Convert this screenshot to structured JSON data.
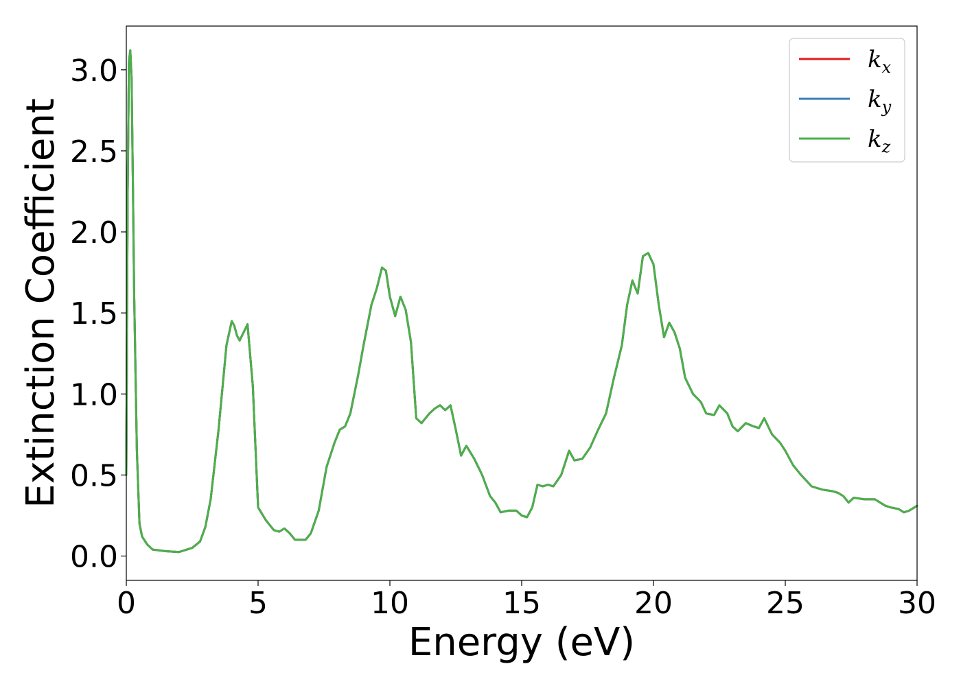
{
  "chart_data": {
    "type": "line",
    "title": "",
    "xlabel": "Energy (eV)",
    "ylabel": "Extinction Coefficient",
    "xlim": [
      0,
      30
    ],
    "ylim": [
      -0.15,
      3.27
    ],
    "xticks": [
      0,
      5,
      10,
      15,
      20,
      25,
      30
    ],
    "xtick_labels": [
      "0",
      "5",
      "10",
      "15",
      "20",
      "25",
      "30"
    ],
    "yticks": [
      0.0,
      0.5,
      1.0,
      1.5,
      2.0,
      2.5,
      3.0
    ],
    "ytick_labels": [
      "0.0",
      "0.5",
      "1.0",
      "1.5",
      "2.0",
      "2.5",
      "3.0"
    ],
    "grid": false,
    "legend_position": "top-right",
    "x": [
      0,
      0.05,
      0.1,
      0.15,
      0.2,
      0.25,
      0.3,
      0.4,
      0.5,
      0.6,
      0.8,
      1.0,
      1.5,
      2.0,
      2.5,
      2.8,
      3.0,
      3.2,
      3.5,
      3.8,
      4.0,
      4.1,
      4.2,
      4.3,
      4.45,
      4.6,
      4.8,
      5.0,
      5.3,
      5.6,
      5.8,
      6.0,
      6.2,
      6.4,
      6.8,
      7.0,
      7.3,
      7.6,
      7.9,
      8.1,
      8.3,
      8.5,
      8.8,
      9.0,
      9.3,
      9.5,
      9.7,
      9.85,
      10.0,
      10.2,
      10.4,
      10.6,
      10.8,
      11.0,
      11.2,
      11.5,
      11.7,
      11.9,
      12.1,
      12.3,
      12.5,
      12.7,
      12.9,
      13.2,
      13.5,
      13.8,
      14.0,
      14.2,
      14.5,
      14.8,
      15.0,
      15.2,
      15.4,
      15.6,
      15.8,
      16.0,
      16.2,
      16.5,
      16.8,
      17.0,
      17.3,
      17.6,
      17.9,
      18.2,
      18.5,
      18.8,
      19.0,
      19.2,
      19.4,
      19.6,
      19.8,
      20.0,
      20.2,
      20.4,
      20.6,
      20.8,
      21.0,
      21.2,
      21.5,
      21.8,
      22.0,
      22.3,
      22.5,
      22.8,
      23.0,
      23.2,
      23.5,
      23.8,
      24.0,
      24.2,
      24.5,
      24.8,
      25.0,
      25.3,
      25.6,
      26.0,
      26.4,
      26.8,
      27.0,
      27.2,
      27.4,
      27.6,
      28.0,
      28.4,
      28.8,
      29.0,
      29.3,
      29.5,
      29.7,
      30.0
    ],
    "series": [
      {
        "name": "k",
        "sub": "x",
        "color": "#e41a1c"
      },
      {
        "name": "k",
        "sub": "y",
        "color": "#377eb8"
      },
      {
        "name": "k",
        "sub": "z",
        "color": "#4daf4a"
      }
    ],
    "y": [
      0.5,
      2.2,
      3.05,
      3.12,
      2.95,
      2.3,
      1.6,
      0.65,
      0.2,
      0.12,
      0.07,
      0.04,
      0.03,
      0.025,
      0.05,
      0.09,
      0.18,
      0.35,
      0.78,
      1.3,
      1.45,
      1.42,
      1.36,
      1.33,
      1.38,
      1.43,
      1.05,
      0.3,
      0.22,
      0.16,
      0.15,
      0.17,
      0.14,
      0.1,
      0.1,
      0.14,
      0.28,
      0.55,
      0.7,
      0.78,
      0.8,
      0.88,
      1.12,
      1.3,
      1.55,
      1.65,
      1.78,
      1.76,
      1.6,
      1.48,
      1.6,
      1.52,
      1.32,
      0.85,
      0.82,
      0.88,
      0.91,
      0.93,
      0.9,
      0.93,
      0.78,
      0.62,
      0.68,
      0.6,
      0.5,
      0.37,
      0.33,
      0.27,
      0.28,
      0.28,
      0.25,
      0.24,
      0.3,
      0.44,
      0.43,
      0.44,
      0.43,
      0.5,
      0.65,
      0.59,
      0.6,
      0.67,
      0.78,
      0.88,
      1.1,
      1.3,
      1.55,
      1.7,
      1.62,
      1.85,
      1.87,
      1.8,
      1.55,
      1.35,
      1.44,
      1.38,
      1.28,
      1.1,
      1.0,
      0.95,
      0.88,
      0.87,
      0.93,
      0.88,
      0.8,
      0.77,
      0.82,
      0.8,
      0.79,
      0.85,
      0.75,
      0.7,
      0.65,
      0.56,
      0.5,
      0.43,
      0.41,
      0.4,
      0.39,
      0.37,
      0.33,
      0.36,
      0.35,
      0.35,
      0.31,
      0.3,
      0.29,
      0.27,
      0.28,
      0.31
    ]
  }
}
